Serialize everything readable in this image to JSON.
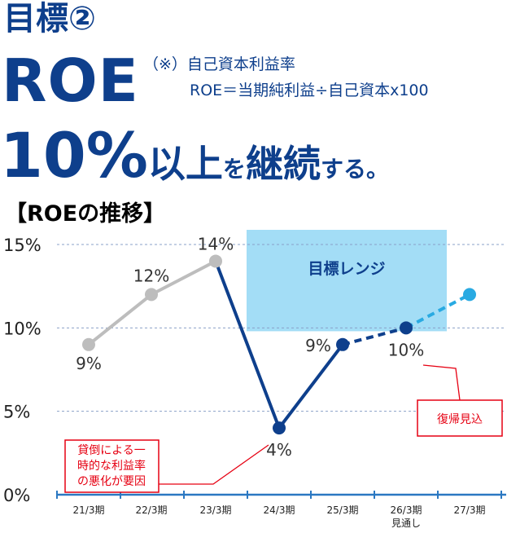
{
  "heading": "目標②",
  "metric": "ROE",
  "definition": {
    "line1": "（※）自己資本利益率",
    "line2": "ROE＝当期純利益÷自己資本x100"
  },
  "target": {
    "part1": "10%",
    "part2": "以上",
    "part3": "を",
    "part4": "継続",
    "part5": "する。"
  },
  "chart_heading": "【ROEの推移】",
  "colors": {
    "navy": "#0e3f8c",
    "gray": "#bdbdbd",
    "light_blue": "#29aae2",
    "range_fill": "#a3ddf6",
    "callout_red": "#e60012",
    "axis": "#2b78c2"
  },
  "chart_data": {
    "type": "line",
    "categories": [
      "21/3期",
      "22/3期",
      "23/3期",
      "24/3期",
      "25/3期",
      "26/3期",
      "27/3期"
    ],
    "category_sublabels": [
      "",
      "",
      "",
      "",
      "",
      "見通し",
      ""
    ],
    "series": [
      {
        "style": "gray-solid",
        "values": [
          9,
          12,
          14,
          null,
          null,
          null,
          null
        ]
      },
      {
        "style": "navy-solid",
        "values": [
          null,
          null,
          14,
          4,
          9,
          null,
          null
        ]
      },
      {
        "style": "navy-dashed",
        "values": [
          null,
          null,
          null,
          null,
          9,
          10,
          null
        ]
      },
      {
        "style": "lightblue-dashed",
        "values": [
          null,
          null,
          null,
          null,
          null,
          10,
          12
        ]
      }
    ],
    "point_labels": [
      "9%",
      "12%",
      "14%",
      "4%",
      "9%",
      "10%",
      null
    ],
    "ylim": [
      0,
      15
    ],
    "yticks": [
      0,
      5,
      10,
      15
    ],
    "ytick_labels": [
      "0%",
      "5%",
      "10%",
      "15%"
    ],
    "grid": "dotted horizontal",
    "target_range": {
      "label": "目標レンジ",
      "from_category": "24/3期",
      "to_category": "27/3期",
      "y_from": 9.8,
      "y_to": 15
    },
    "annotations": [
      {
        "text": [
          "貸倒による一",
          "時的な利益率",
          "の悪化が要因"
        ],
        "target_category": "24/3期"
      },
      {
        "text": [
          "復帰見込"
        ],
        "target_category": "26/3期"
      }
    ]
  }
}
